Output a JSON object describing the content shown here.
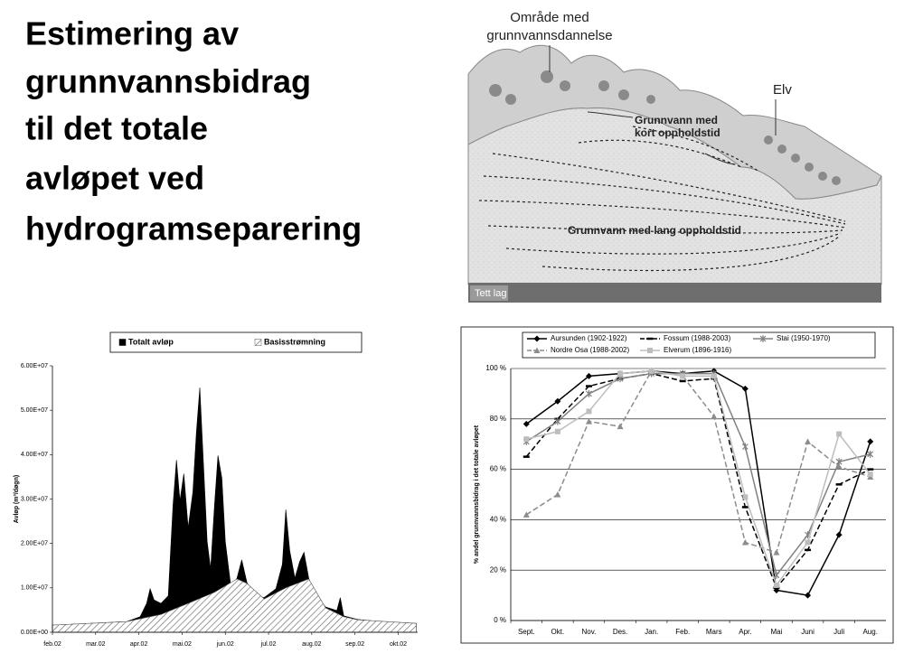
{
  "title_lines": [
    "Estimering av",
    "grunnvannsbidrag",
    "til det totale",
    "avløpet ved",
    "hydrogramseparering"
  ],
  "diagram": {
    "recharge_label": [
      "Område med",
      "grunnvannsdannelse"
    ],
    "river_label": "Elv",
    "short_label": [
      "Grunnvann med",
      "kort oppholdstid"
    ],
    "long_label": "Grunnvann med lang oppholdstid",
    "layer_label": "Tett lag"
  },
  "chart_data": [
    {
      "type": "area",
      "y_label": "Avløp (m³/døgn)",
      "xlim": [
        0,
        8.45
      ],
      "ylim": [
        0,
        60000000
      ],
      "xticks": [
        {
          "value": 0,
          "label": "feb.02"
        },
        {
          "value": 1,
          "label": "mar.02"
        },
        {
          "value": 2,
          "label": "apr.02"
        },
        {
          "value": 3,
          "label": "mai.02"
        },
        {
          "value": 4,
          "label": "jun.02"
        },
        {
          "value": 5,
          "label": "jul.02"
        },
        {
          "value": 6,
          "label": "aug.02"
        },
        {
          "value": 7,
          "label": "sep.02"
        },
        {
          "value": 8,
          "label": "okt.02"
        }
      ],
      "yticks": [
        {
          "value": 0,
          "label": "0.00E+00"
        },
        {
          "value": 10000000,
          "label": "1.00E+07"
        },
        {
          "value": 20000000,
          "label": "2.00E+07"
        },
        {
          "value": 30000000,
          "label": "3.00E+07"
        },
        {
          "value": 40000000,
          "label": "4.00E+07"
        },
        {
          "value": 50000000,
          "label": "5.00E+07"
        },
        {
          "value": 60000000,
          "label": "6.00E+07"
        }
      ],
      "series": [
        {
          "name": "Totalt avløp",
          "color": "#000000",
          "fill": "solid",
          "x": [
            0,
            0.88,
            1.72,
            2.03,
            2.18,
            2.26,
            2.35,
            2.51,
            2.68,
            2.79,
            2.87,
            2.95,
            3.04,
            3.14,
            3.25,
            3.33,
            3.41,
            3.5,
            3.58,
            3.66,
            3.75,
            3.83,
            3.92,
            4.0,
            4.13,
            4.27,
            4.38,
            4.5,
            4.69,
            4.9,
            5.17,
            5.32,
            5.4,
            5.49,
            5.61,
            5.72,
            5.82,
            5.93,
            6.07,
            6.32,
            6.58,
            6.66,
            6.74,
            7.06,
            7.58,
            8.42
          ],
          "values": [
            1600000,
            2000000,
            2400000,
            3500000,
            6500000,
            9800000,
            7300000,
            6500000,
            8200000,
            28600000,
            38800000,
            29600000,
            35700000,
            23500000,
            31600000,
            44900000,
            55100000,
            36700000,
            20400000,
            14300000,
            28600000,
            39800000,
            34700000,
            20400000,
            10200000,
            12200000,
            16300000,
            11200000,
            8200000,
            7800000,
            9800000,
            15300000,
            27600000,
            18400000,
            12200000,
            15900000,
            18000000,
            12200000,
            8200000,
            5700000,
            4900000,
            7800000,
            3700000,
            2900000,
            2400000,
            2000000
          ]
        },
        {
          "name": "Basisstrømning",
          "color": "#555555",
          "fill": "hatch",
          "x": [
            0,
            1.72,
            2.51,
            3.14,
            3.75,
            4.27,
            4.5,
            4.9,
            5.4,
            5.93,
            6.32,
            6.74,
            7.06,
            8.42
          ],
          "values": [
            1600000,
            2400000,
            4000000,
            6500000,
            9000000,
            12000000,
            11000000,
            7500000,
            10000000,
            12000000,
            5500000,
            3500000,
            2800000,
            2000000
          ]
        }
      ]
    },
    {
      "type": "line",
      "y_label": "% andel grunnvannsbidrag i det totale avløpet",
      "grid": true,
      "categories": [
        "Sept.",
        "Okt.",
        "Nov.",
        "Des.",
        "Jan.",
        "Feb.",
        "Mars",
        "Apr.",
        "Mai",
        "Juni",
        "Juli",
        "Aug."
      ],
      "ylim": [
        0,
        100
      ],
      "yticks": [
        {
          "value": 0,
          "label": "0 %"
        },
        {
          "value": 20,
          "label": "20 %"
        },
        {
          "value": 40,
          "label": "40 %"
        },
        {
          "value": 60,
          "label": "60 %"
        },
        {
          "value": 80,
          "label": "80 %"
        },
        {
          "value": 100,
          "label": "100 %"
        }
      ],
      "series": [
        {
          "name": "Aursunden (1902-1922)",
          "color": "#000000",
          "line_style": "solid",
          "marker": "diamond",
          "values": [
            78,
            87,
            97,
            98,
            99,
            98,
            99,
            92,
            12,
            10,
            34,
            71
          ]
        },
        {
          "name": "Fossum (1988-2003)",
          "color": "#000000",
          "line_style": "dashed",
          "marker": "dash",
          "values": [
            65,
            80,
            93,
            96,
            98,
            95,
            96,
            45,
            13,
            28,
            54,
            60
          ]
        },
        {
          "name": "Stai (1950-1970)",
          "color": "#808080",
          "line_style": "solid",
          "marker": "star",
          "values": [
            71,
            79,
            90,
            96,
            98,
            98,
            98,
            69,
            18,
            34,
            63,
            66
          ]
        },
        {
          "name": "Nordre Osa (1988-2002)",
          "color": "#8c8c8c",
          "line_style": "dashed",
          "marker": "triangle",
          "values": [
            42,
            50,
            79,
            77,
            99,
            97,
            81,
            31,
            27,
            71,
            61,
            57
          ]
        },
        {
          "name": "Elverum (1896-1916)",
          "color": "#bdbdbd",
          "line_style": "solid",
          "marker": "square",
          "values": [
            72,
            75,
            83,
            98,
            99,
            97,
            97,
            49,
            14,
            31,
            74,
            58
          ]
        }
      ]
    }
  ]
}
